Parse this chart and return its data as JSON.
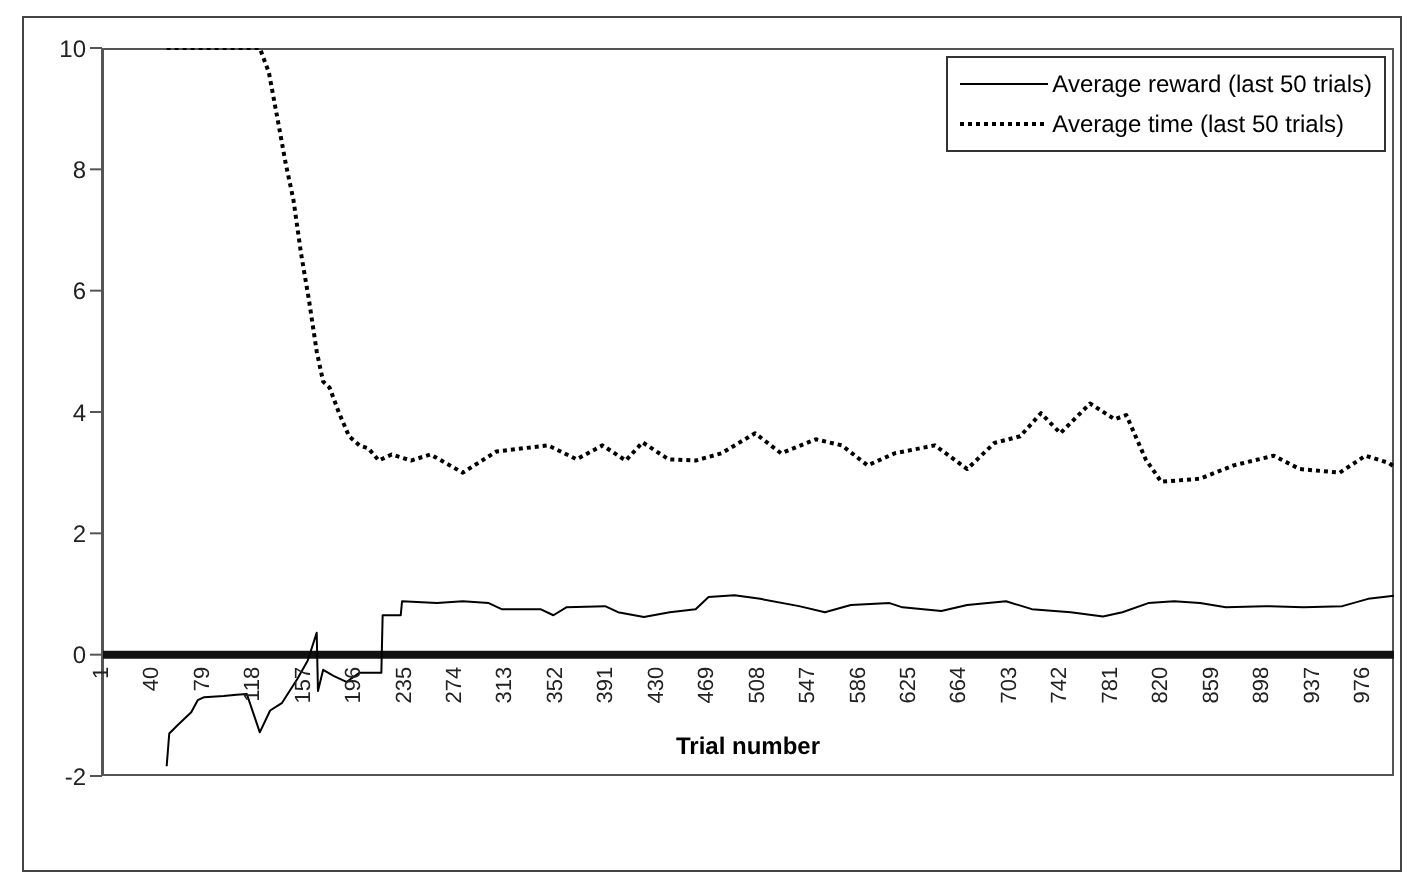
{
  "chart_data": {
    "type": "line",
    "xlabel": "Trial number",
    "xlim": [
      1,
      1000
    ],
    "xticks": [
      1,
      40,
      79,
      118,
      157,
      196,
      235,
      274,
      313,
      352,
      391,
      430,
      469,
      508,
      547,
      586,
      625,
      664,
      703,
      742,
      781,
      820,
      859,
      898,
      937,
      976
    ],
    "ylim": [
      -2,
      10
    ],
    "yticks": [
      -2,
      0,
      2,
      4,
      6,
      8,
      10
    ],
    "grid": false,
    "legend": "top right",
    "marker": "none",
    "series": [
      {
        "name": "Average reward (last 50 trials)",
        "color": "#000000",
        "line_style": "solid",
        "x": [
          51,
          53,
          60,
          70,
          75,
          80,
          95,
          105,
          113,
          123,
          131,
          140,
          152,
          160,
          167,
          168,
          172,
          180,
          190,
          200,
          217,
          218,
          232,
          233,
          260,
          280,
          300,
          310,
          340,
          350,
          360,
          390,
          400,
          420,
          440,
          460,
          470,
          490,
          510,
          540,
          560,
          580,
          610,
          620,
          650,
          670,
          700,
          720,
          750,
          775,
          790,
          810,
          830,
          850,
          870,
          900,
          930,
          960,
          980,
          1000
        ],
        "values": [
          -1.84,
          -1.3,
          -1.15,
          -0.95,
          -0.75,
          -0.7,
          -0.68,
          -0.66,
          -0.65,
          -1.28,
          -0.92,
          -0.8,
          -0.4,
          -0.1,
          0.36,
          -0.6,
          -0.25,
          -0.35,
          -0.45,
          -0.3,
          -0.3,
          0.65,
          0.65,
          0.88,
          0.85,
          0.88,
          0.85,
          0.75,
          0.75,
          0.65,
          0.78,
          0.8,
          0.7,
          0.62,
          0.7,
          0.75,
          0.95,
          0.98,
          0.92,
          0.8,
          0.7,
          0.82,
          0.85,
          0.78,
          0.72,
          0.82,
          0.88,
          0.75,
          0.7,
          0.63,
          0.7,
          0.85,
          0.88,
          0.85,
          0.78,
          0.8,
          0.78,
          0.8,
          0.92,
          0.97
        ]
      },
      {
        "name": "Average time (last 50 trials)",
        "color": "#000000",
        "line_style": "dotted",
        "x": [
          51,
          123,
          130,
          137,
          143,
          149,
          155,
          161,
          167,
          172,
          177,
          184,
          192,
          200,
          207,
          215,
          225,
          240,
          255,
          280,
          306,
          346,
          368,
          388,
          406,
          419,
          439,
          460,
          480,
          506,
          526,
          553,
          573,
          593,
          614,
          645,
          670,
          691,
          711,
          727,
          742,
          765,
          784,
          793,
          808,
          820,
          850,
          876,
          907,
          927,
          958,
          978,
          996,
          1000
        ],
        "values": [
          10,
          10,
          9.6,
          8.8,
          8.1,
          7.5,
          6.6,
          5.85,
          5.0,
          4.5,
          4.4,
          4.0,
          3.6,
          3.45,
          3.4,
          3.2,
          3.3,
          3.2,
          3.3,
          3.0,
          3.35,
          3.45,
          3.22,
          3.45,
          3.2,
          3.5,
          3.22,
          3.2,
          3.32,
          3.65,
          3.32,
          3.55,
          3.45,
          3.12,
          3.32,
          3.45,
          3.06,
          3.49,
          3.6,
          3.98,
          3.65,
          4.14,
          3.88,
          3.95,
          3.22,
          2.85,
          2.9,
          3.12,
          3.28,
          3.06,
          3.0,
          3.28,
          3.16,
          3.1
        ]
      }
    ]
  }
}
